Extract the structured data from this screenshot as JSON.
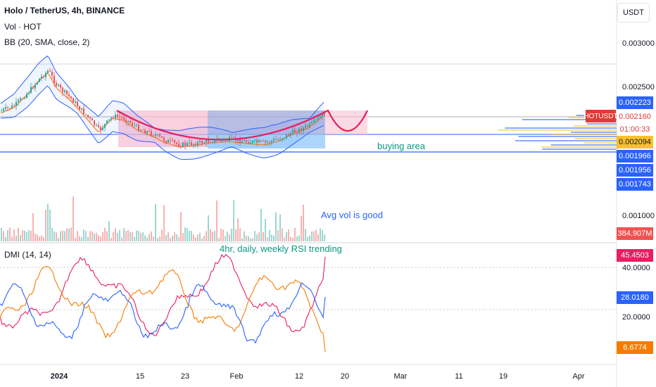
{
  "header": {
    "symbol_title": "Holo / TetherUS, 4h, BINANCE",
    "vol_label": "Vol · HOT",
    "bb_label": "BB (20, SMA, close, 2)",
    "dmi_label": "DMI (14, 14)",
    "currency_button": "USDT"
  },
  "price_axis": {
    "ticks": [
      "0.003000",
      "0.002500",
      "0.001000",
      "40.0000",
      "20.0000"
    ]
  },
  "price_tags": [
    {
      "label": "0.002223",
      "bg": "#2962ff",
      "fg": "#ffffff"
    },
    {
      "label": "0.002160",
      "bg": "#ffffff",
      "fg": "#e53935"
    },
    {
      "label": "01:00:33",
      "bg": "#ffffff",
      "fg": "#e53935"
    },
    {
      "label": "0.002094",
      "bg": "#fbc02d",
      "fg": "#131722"
    },
    {
      "label": "0.001966",
      "bg": "#2962ff",
      "fg": "#ffffff"
    },
    {
      "label": "0.001956",
      "bg": "#2962ff",
      "fg": "#ffffff"
    },
    {
      "label": "0.001743",
      "bg": "#2962ff",
      "fg": "#ffffff"
    },
    {
      "label": "384.907M",
      "bg": "#ef5350",
      "fg": "#ffffff"
    },
    {
      "label": "45.4503",
      "bg": "#e91e63",
      "fg": "#ffffff"
    },
    {
      "label": "28.0180",
      "bg": "#2962ff",
      "fg": "#ffffff"
    },
    {
      "label": "6.6774",
      "bg": "#f57c00",
      "fg": "#ffffff"
    }
  ],
  "symbol_tag": "HOTUSDT",
  "time_axis": [
    "2024",
    "15",
    "23",
    "Feb",
    "12",
    "20",
    "Mar",
    "11",
    "19",
    "Apr"
  ],
  "annotations": {
    "buying_area": "buying area",
    "avg_vol": "Avg vol is good",
    "rsi_note": "4hr, daily, weekly RSI trending"
  },
  "colors": {
    "up": "#26a69a",
    "down": "#ef5350",
    "bb_band": "#2962ff",
    "bb_basis": "#ff6d00",
    "cup_curve": "#e91e63",
    "buying_line": "#2962ff",
    "dmi_plus": "#2962ff",
    "dmi_minus": "#f57c00",
    "adx": "#e91e63"
  }
}
